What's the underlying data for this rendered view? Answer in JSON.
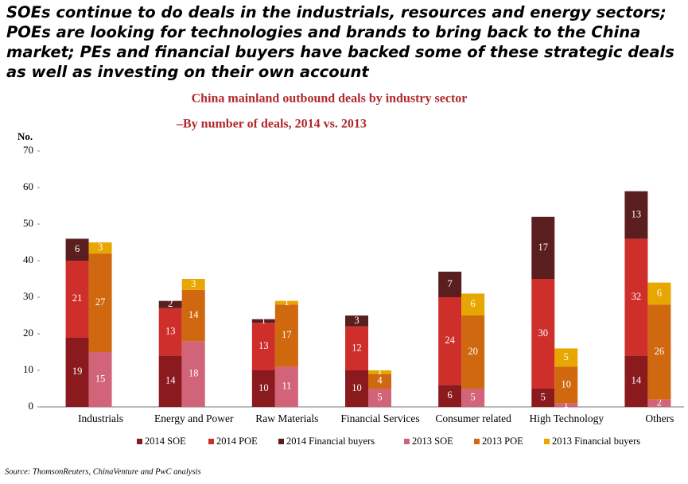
{
  "chart_data": {
    "type": "stacked_grouped_bar",
    "title": [
      "SOEs continue to do deals in the industrials, resources and energy sectors;",
      "POEs are looking for technologies and brands to bring back to the China",
      "market; PEs and financial buyers have backed some of these strategic deals",
      "as well as investing on their own account"
    ],
    "subtitle": "China mainland outbound deals by industry sector",
    "subtitle2": "–By number of deals,  2014 vs. 2013",
    "y_label": "No.",
    "source": "Source: ThomsonReuters, ChinaVenture and PwC analysis",
    "categories": [
      "Industrials",
      "Energy and Power",
      "Raw Materials",
      "Financial Services",
      "Consumer related",
      "High Technology",
      "Others"
    ],
    "series": [
      {
        "name": "2014 SOE",
        "color": "#8b1a1e",
        "stack": 0,
        "values": [
          19,
          14,
          10,
          10,
          6,
          5,
          14
        ]
      },
      {
        "name": "2014 POE",
        "color": "#cf2f2a",
        "stack": 0,
        "values": [
          21,
          13,
          13,
          12,
          24,
          30,
          32
        ]
      },
      {
        "name": "2014 Financial buyers",
        "color": "#5a1e1e",
        "stack": 0,
        "values": [
          6,
          2,
          1,
          3,
          7,
          17,
          13
        ]
      },
      {
        "name": "2013 SOE",
        "color": "#d2647a",
        "stack": 1,
        "values": [
          15,
          18,
          11,
          5,
          5,
          1,
          2
        ]
      },
      {
        "name": "2013 POE",
        "color": "#d0680f",
        "stack": 1,
        "values": [
          27,
          14,
          17,
          4,
          20,
          10,
          26
        ]
      },
      {
        "name": "2013 Financial buyers",
        "color": "#e7a600",
        "stack": 1,
        "values": [
          3,
          3,
          1,
          1,
          6,
          5,
          6
        ]
      }
    ],
    "ylim": [
      0,
      70
    ],
    "yticks": [
      0,
      10,
      20,
      30,
      40,
      50,
      60,
      70
    ],
    "grid": false,
    "legend": "bottom"
  }
}
